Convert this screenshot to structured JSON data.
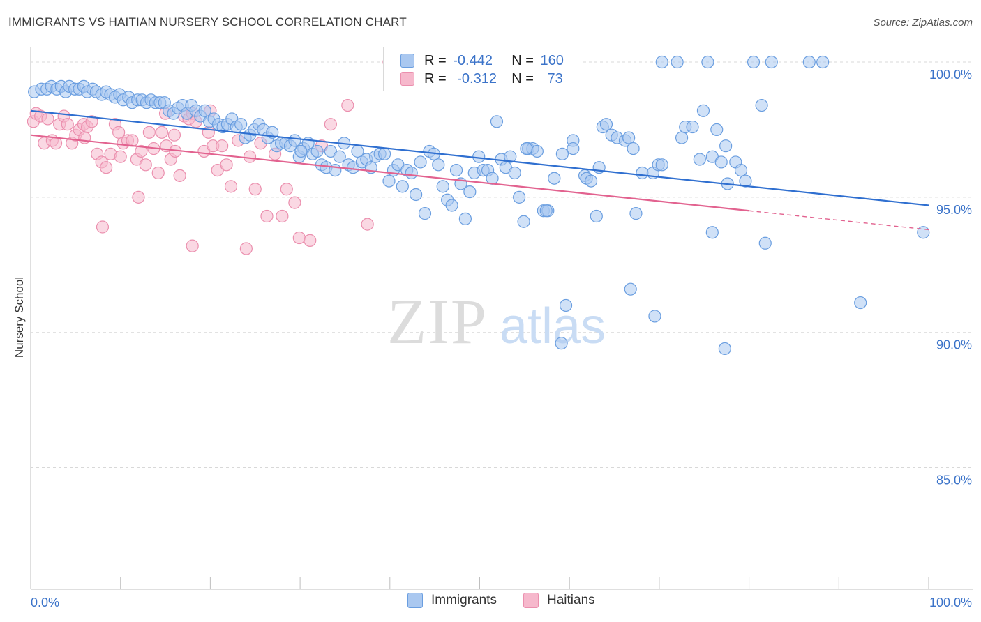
{
  "title": "IMMIGRANTS VS HAITIAN NURSERY SCHOOL CORRELATION CHART",
  "source": "Source: ZipAtlas.com",
  "watermark": {
    "zip": "ZIP",
    "atlas": "atlas"
  },
  "colors": {
    "immigrants_fill": "#aac8f0",
    "immigrants_stroke": "#6a9ee0",
    "immigrants_line": "#2f6fd0",
    "haitians_fill": "#f6b8cc",
    "haitians_stroke": "#eb8fae",
    "haitians_line": "#e2628f",
    "tick_label": "#3b73c9",
    "grid": "#d8d8d8"
  },
  "legend": {
    "rows": [
      {
        "r_label": "R =",
        "r_value": "-0.442",
        "n_label": "N =",
        "n_value": "160"
      },
      {
        "r_label": "R =",
        "r_value": "-0.312",
        "n_label": "N =",
        "n_value": "73"
      }
    ]
  },
  "bottom_legend": {
    "immigrants": "Immigrants",
    "haitians": "Haitians"
  },
  "chart_data": {
    "type": "scatter",
    "xlabel": "",
    "ylabel": "Nursery School",
    "xlim": [
      0,
      100
    ],
    "ylim": [
      80.5,
      100.8
    ],
    "x_tick_labels": [
      "0.0%",
      "100.0%"
    ],
    "y_ticks": [
      100,
      95,
      90,
      85
    ],
    "y_tick_labels": [
      "100.0%",
      "95.0%",
      "90.0%",
      "85.0%"
    ],
    "grid": "horizontal dashed",
    "legend_position": "top-center",
    "series": [
      {
        "name": "Immigrants",
        "trend": {
          "x0": 0,
          "y0": 98.2,
          "x1": 100,
          "y1": 94.7,
          "solid_until": 100
        },
        "points": [
          [
            0.4,
            98.9
          ],
          [
            1.2,
            99.0
          ],
          [
            1.8,
            99.0
          ],
          [
            2.3,
            99.1
          ],
          [
            2.9,
            99.0
          ],
          [
            3.4,
            99.1
          ],
          [
            3.9,
            98.9
          ],
          [
            4.3,
            99.1
          ],
          [
            4.9,
            99.0
          ],
          [
            5.4,
            99.0
          ],
          [
            5.9,
            99.1
          ],
          [
            6.3,
            98.9
          ],
          [
            6.9,
            99.0
          ],
          [
            7.3,
            98.9
          ],
          [
            7.9,
            98.8
          ],
          [
            8.4,
            98.9
          ],
          [
            8.9,
            98.8
          ],
          [
            9.4,
            98.7
          ],
          [
            9.9,
            98.8
          ],
          [
            10.3,
            98.6
          ],
          [
            10.9,
            98.7
          ],
          [
            11.3,
            98.5
          ],
          [
            11.9,
            98.6
          ],
          [
            12.4,
            98.6
          ],
          [
            12.9,
            98.5
          ],
          [
            13.4,
            98.6
          ],
          [
            13.9,
            98.5
          ],
          [
            14.4,
            98.5
          ],
          [
            14.9,
            98.5
          ],
          [
            15.4,
            98.2
          ],
          [
            15.9,
            98.1
          ],
          [
            16.4,
            98.3
          ],
          [
            16.9,
            98.4
          ],
          [
            17.4,
            98.1
          ],
          [
            17.9,
            98.4
          ],
          [
            18.4,
            98.2
          ],
          [
            18.9,
            98.0
          ],
          [
            19.4,
            98.2
          ],
          [
            19.9,
            97.8
          ],
          [
            20.4,
            97.9
          ],
          [
            20.9,
            97.7
          ],
          [
            21.4,
            97.6
          ],
          [
            21.9,
            97.7
          ],
          [
            22.4,
            97.9
          ],
          [
            22.9,
            97.6
          ],
          [
            23.4,
            97.7
          ],
          [
            23.9,
            97.2
          ],
          [
            24.4,
            97.3
          ],
          [
            24.9,
            97.5
          ],
          [
            25.4,
            97.7
          ],
          [
            25.9,
            97.5
          ],
          [
            26.4,
            97.2
          ],
          [
            26.9,
            97.4
          ],
          [
            27.4,
            96.9
          ],
          [
            27.9,
            97.0
          ],
          [
            28.4,
            97.0
          ],
          [
            28.9,
            96.9
          ],
          [
            29.4,
            97.1
          ],
          [
            29.9,
            96.5
          ],
          [
            30.4,
            96.8
          ],
          [
            30.9,
            97.0
          ],
          [
            31.4,
            96.6
          ],
          [
            31.9,
            96.7
          ],
          [
            32.4,
            96.2
          ],
          [
            32.9,
            96.1
          ],
          [
            33.4,
            96.7
          ],
          [
            33.9,
            96.0
          ],
          [
            34.4,
            96.5
          ],
          [
            34.9,
            97.0
          ],
          [
            35.4,
            96.2
          ],
          [
            35.9,
            96.1
          ],
          [
            36.4,
            96.7
          ],
          [
            36.9,
            96.3
          ],
          [
            37.4,
            96.4
          ],
          [
            37.9,
            96.1
          ],
          [
            38.4,
            96.5
          ],
          [
            38.9,
            96.6
          ],
          [
            39.4,
            96.6
          ],
          [
            39.9,
            95.6
          ],
          [
            40.4,
            96.0
          ],
          [
            40.9,
            96.2
          ],
          [
            41.4,
            95.4
          ],
          [
            41.9,
            96.0
          ],
          [
            42.4,
            95.9
          ],
          [
            42.9,
            95.1
          ],
          [
            43.4,
            96.3
          ],
          [
            43.9,
            94.4
          ],
          [
            44.4,
            96.7
          ],
          [
            44.9,
            96.6
          ],
          [
            45.4,
            96.2
          ],
          [
            45.9,
            95.4
          ],
          [
            46.4,
            94.9
          ],
          [
            46.9,
            94.7
          ],
          [
            47.4,
            96.0
          ],
          [
            47.9,
            95.5
          ],
          [
            48.4,
            94.2
          ],
          [
            48.9,
            95.2
          ],
          [
            49.4,
            95.9
          ],
          [
            49.9,
            96.5
          ],
          [
            50.4,
            96.0
          ],
          [
            50.9,
            96.0
          ],
          [
            51.4,
            95.7
          ],
          [
            51.9,
            97.8
          ],
          [
            52.4,
            96.4
          ],
          [
            52.9,
            96.1
          ],
          [
            53.4,
            96.5
          ],
          [
            53.9,
            95.9
          ],
          [
            54.4,
            95.0
          ],
          [
            54.9,
            94.1
          ],
          [
            55.4,
            96.8
          ],
          [
            55.9,
            96.8
          ],
          [
            56.4,
            96.7
          ],
          [
            57.1,
            94.5
          ],
          [
            57.6,
            94.5
          ],
          [
            58.3,
            95.7
          ],
          [
            59.2,
            96.6
          ],
          [
            60.4,
            97.1
          ],
          [
            61.7,
            95.8
          ],
          [
            61.9,
            95.7
          ],
          [
            62.4,
            95.6
          ],
          [
            63.0,
            94.3
          ],
          [
            63.7,
            97.6
          ],
          [
            64.1,
            97.7
          ],
          [
            64.7,
            97.3
          ],
          [
            65.3,
            97.2
          ],
          [
            66.2,
            97.1
          ],
          [
            66.6,
            97.2
          ],
          [
            67.1,
            96.8
          ],
          [
            67.4,
            94.4
          ],
          [
            68.1,
            95.9
          ],
          [
            69.3,
            95.9
          ],
          [
            69.9,
            96.2
          ],
          [
            70.3,
            96.2
          ],
          [
            72.5,
            97.2
          ],
          [
            72.9,
            97.6
          ],
          [
            73.7,
            97.6
          ],
          [
            74.5,
            96.4
          ],
          [
            74.9,
            98.2
          ],
          [
            75.9,
            96.5
          ],
          [
            76.4,
            97.5
          ],
          [
            76.9,
            96.3
          ],
          [
            77.4,
            96.9
          ],
          [
            77.6,
            95.5
          ],
          [
            78.5,
            96.3
          ],
          [
            79.1,
            96.0
          ],
          [
            79.6,
            95.6
          ],
          [
            81.4,
            98.4
          ],
          [
            72.0,
            100.0
          ],
          [
            80.5,
            100.0
          ],
          [
            70.3,
            100.0
          ],
          [
            75.4,
            100.0
          ],
          [
            82.5,
            100.0
          ],
          [
            88.2,
            100.0
          ],
          [
            86.7,
            100.0
          ],
          [
            75.9,
            93.7
          ],
          [
            77.3,
            89.4
          ],
          [
            81.8,
            93.3
          ],
          [
            66.8,
            91.6
          ],
          [
            69.5,
            90.6
          ],
          [
            59.6,
            91.0
          ],
          [
            59.1,
            89.6
          ],
          [
            92.4,
            91.1
          ],
          [
            99.4,
            93.7
          ],
          [
            30.1,
            96.7
          ],
          [
            55.2,
            96.8
          ],
          [
            57.4,
            94.5
          ],
          [
            60.4,
            96.8
          ],
          [
            63.3,
            96.1
          ]
        ]
      },
      {
        "name": "Haitians",
        "trend": {
          "x0": 0,
          "y0": 97.3,
          "x1": 100,
          "y1": 93.8,
          "solid_until": 80
        },
        "points": [
          [
            0.3,
            97.8
          ],
          [
            0.6,
            98.1
          ],
          [
            1.1,
            98.0
          ],
          [
            1.5,
            97.0
          ],
          [
            1.9,
            97.9
          ],
          [
            2.4,
            97.1
          ],
          [
            2.8,
            97.0
          ],
          [
            3.2,
            97.7
          ],
          [
            3.7,
            98.0
          ],
          [
            4.1,
            97.7
          ],
          [
            4.6,
            97.0
          ],
          [
            5.0,
            97.3
          ],
          [
            5.4,
            97.5
          ],
          [
            5.9,
            97.7
          ],
          [
            6.3,
            97.6
          ],
          [
            6.8,
            97.8
          ],
          [
            7.4,
            96.6
          ],
          [
            7.9,
            96.3
          ],
          [
            8.4,
            96.1
          ],
          [
            8.9,
            96.6
          ],
          [
            9.4,
            97.7
          ],
          [
            9.8,
            97.4
          ],
          [
            10.3,
            97.0
          ],
          [
            10.8,
            97.1
          ],
          [
            11.3,
            97.1
          ],
          [
            11.8,
            96.4
          ],
          [
            12.3,
            96.7
          ],
          [
            12.8,
            96.2
          ],
          [
            13.2,
            97.4
          ],
          [
            13.7,
            96.8
          ],
          [
            14.2,
            95.9
          ],
          [
            14.6,
            97.4
          ],
          [
            15.1,
            96.9
          ],
          [
            15.6,
            96.4
          ],
          [
            16.1,
            96.7
          ],
          [
            16.6,
            95.8
          ],
          [
            17.1,
            98.0
          ],
          [
            17.6,
            97.9
          ],
          [
            18.0,
            98.1
          ],
          [
            18.4,
            97.8
          ],
          [
            19.3,
            96.7
          ],
          [
            19.8,
            97.4
          ],
          [
            20.3,
            96.9
          ],
          [
            20.8,
            96.0
          ],
          [
            21.3,
            96.9
          ],
          [
            21.8,
            96.2
          ],
          [
            22.3,
            95.4
          ],
          [
            23.1,
            97.1
          ],
          [
            24.4,
            96.5
          ],
          [
            25.0,
            95.3
          ],
          [
            25.6,
            97.0
          ],
          [
            26.3,
            94.3
          ],
          [
            27.2,
            96.6
          ],
          [
            28.5,
            95.3
          ],
          [
            29.4,
            94.8
          ],
          [
            29.9,
            93.5
          ],
          [
            31.1,
            93.4
          ],
          [
            32.4,
            96.9
          ],
          [
            33.4,
            97.7
          ],
          [
            35.3,
            98.4
          ],
          [
            37.5,
            94.0
          ],
          [
            39.9,
            100.0
          ],
          [
            40.0,
            99.2
          ],
          [
            15.0,
            98.1
          ],
          [
            16.0,
            97.3
          ],
          [
            20.0,
            98.2
          ],
          [
            8.0,
            93.9
          ],
          [
            12.0,
            95.0
          ],
          [
            18.0,
            93.2
          ],
          [
            24.0,
            93.1
          ],
          [
            28.0,
            94.3
          ],
          [
            6.0,
            97.2
          ],
          [
            10.0,
            96.5
          ]
        ]
      }
    ]
  }
}
